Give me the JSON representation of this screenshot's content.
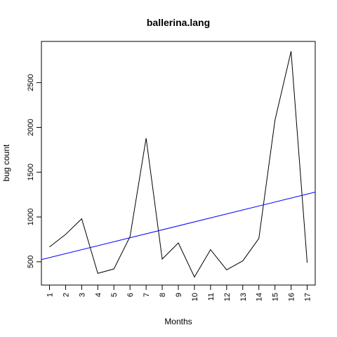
{
  "chart_data": {
    "type": "line",
    "title": "ballerina.lang",
    "xlabel": "Months",
    "ylabel": "bug count",
    "x": [
      1,
      2,
      3,
      4,
      5,
      6,
      7,
      8,
      9,
      10,
      11,
      12,
      13,
      14,
      15,
      16,
      17
    ],
    "xlim": [
      0.5,
      17.5
    ],
    "ylim": [
      240,
      2960
    ],
    "yticks": [
      500,
      1000,
      1500,
      2000,
      2500
    ],
    "grid": false,
    "series": [
      {
        "values": [
          665,
          805,
          980,
          370,
          420,
          780,
          1880,
          530,
          710,
          330,
          635,
          410,
          510,
          760,
          2080,
          2850,
          490
        ],
        "color": "#000000"
      }
    ],
    "trend_line": {
      "color": "#0000ff",
      "points": [
        [
          0.5,
          524
        ],
        [
          17.5,
          1278
        ]
      ]
    }
  }
}
